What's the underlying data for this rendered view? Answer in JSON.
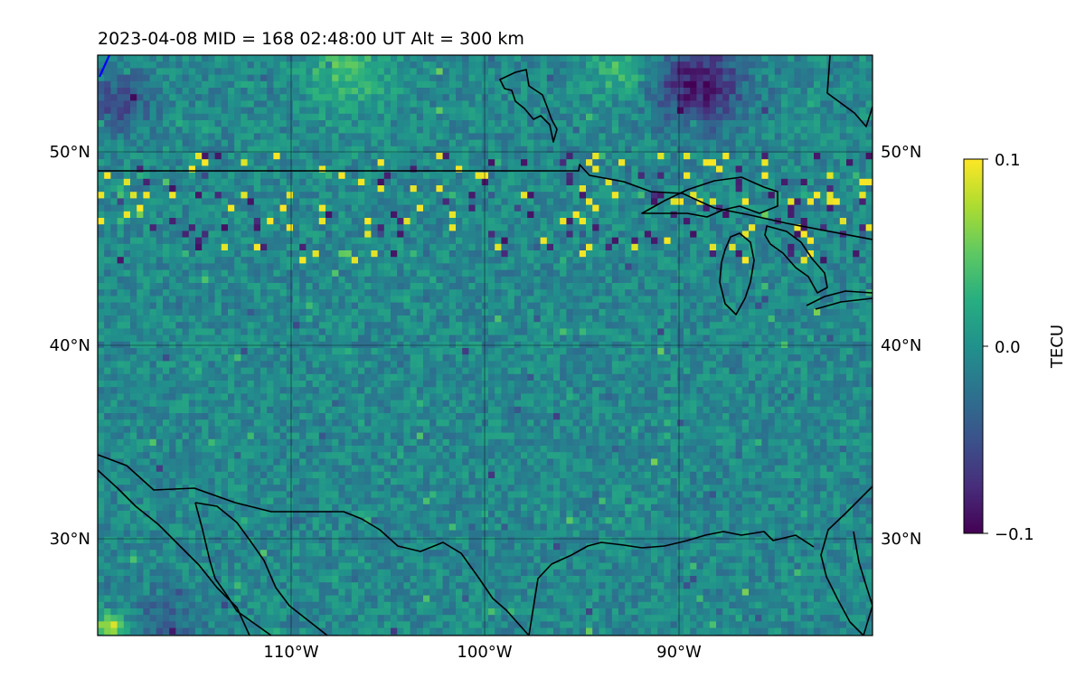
{
  "figure": {
    "title": "2023-04-08  MID = 168    02:48:00  UT  Alt = 300 km"
  },
  "map": {
    "lon_range": [
      -120,
      -80
    ],
    "lat_range": [
      25,
      55
    ],
    "projection": "PlateCarree",
    "gridlines": true,
    "lon_ticks": [
      {
        "value": -110,
        "label": "110°W"
      },
      {
        "value": -100,
        "label": "100°W"
      },
      {
        "value": -90,
        "label": "90°W"
      }
    ],
    "lat_ticks": [
      {
        "value": 50,
        "label": "50°N"
      },
      {
        "value": 40,
        "label": "40°N"
      },
      {
        "value": 30,
        "label": "30°N"
      }
    ],
    "features": [
      "coastlines",
      "us-canada border",
      "us-mexico border",
      "great lakes"
    ]
  },
  "colorbar": {
    "label": "TECU",
    "colormap": "viridis",
    "vmin": -0.1,
    "vmax": 0.1,
    "ticks": [
      {
        "value": 0.1,
        "label": "0.1"
      },
      {
        "value": 0.0,
        "label": "0.0"
      },
      {
        "value": -0.1,
        "label": "−0.1"
      }
    ]
  },
  "colors": {
    "viridis_low": "#440154",
    "viridis_mid": "#21918c",
    "viridis_high": "#fde725",
    "outline": "#000000",
    "partial_track": "#0000ff"
  }
}
